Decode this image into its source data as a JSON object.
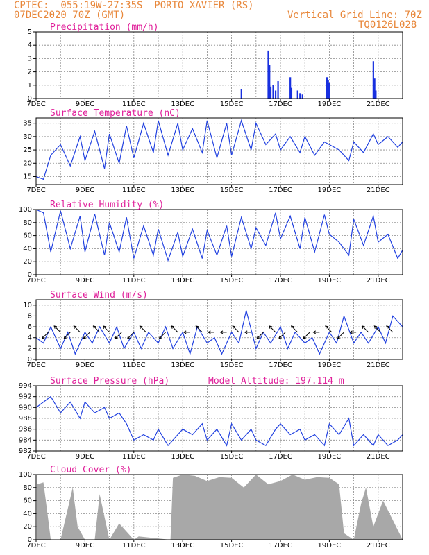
{
  "header": {
    "line1": "CPTEC:  055:19W-27:35S  PORTO XAVIER (RS)",
    "line2": "07DEC2020 70Z (GMT)",
    "right1": "Vertical Grid Line: 70Z",
    "right2": "TQ0126L028"
  },
  "colors": {
    "line": "#2040e0",
    "bar": "#1830e0",
    "cloud": "#a8a8a8",
    "title": "#e0209a",
    "header": "#e8873a"
  },
  "x_ticks": [
    "7DEC",
    "9DEC",
    "11DEC",
    "13DEC",
    "15DEC",
    "17DEC",
    "19DEC",
    "21DEC"
  ],
  "x_range_days": [
    7,
    22
  ],
  "panels": [
    {
      "id": "precip",
      "title": "Precipitation (mm/h)",
      "yticks": [
        0,
        1,
        2,
        3,
        4,
        5
      ],
      "ylim": [
        0,
        5
      ]
    },
    {
      "id": "temp",
      "title": "Surface Temperature (nC)",
      "yticks": [
        15,
        20,
        25,
        30,
        35
      ],
      "ylim": [
        12,
        37
      ]
    },
    {
      "id": "rh",
      "title": "Relative Humidity (%)",
      "yticks": [
        0,
        20,
        40,
        60,
        80,
        100
      ],
      "ylim": [
        0,
        100
      ]
    },
    {
      "id": "wind",
      "title": "Surface Wind (m/s)",
      "yticks": [
        0,
        2,
        4,
        6,
        8,
        10
      ],
      "ylim": [
        0,
        11
      ]
    },
    {
      "id": "pres",
      "title": "Surface Pressure (hPa)",
      "extra": "Model Altitude: 197.114 m",
      "yticks": [
        982,
        984,
        986,
        988,
        990,
        992,
        994
      ],
      "ylim": [
        982,
        994
      ]
    },
    {
      "id": "cloud",
      "title": "Cloud Cover (%)",
      "yticks": [
        0,
        20,
        40,
        60,
        80,
        100
      ],
      "ylim": [
        0,
        100
      ]
    }
  ],
  "chart_data": [
    {
      "type": "bar",
      "title": "Precipitation (mm/h)",
      "ylim": [
        0,
        5
      ],
      "x": [
        15.4,
        16.5,
        16.55,
        16.6,
        16.7,
        16.8,
        16.9,
        17.4,
        17.45,
        17.7,
        17.8,
        17.9,
        18.9,
        18.95,
        19.0,
        20.8,
        20.85,
        20.9
      ],
      "values": [
        0.7,
        3.6,
        2.5,
        0.9,
        1.0,
        0.6,
        1.3,
        1.6,
        0.8,
        0.6,
        0.4,
        0.3,
        1.6,
        1.4,
        1.2,
        2.8,
        1.5,
        0.6
      ]
    },
    {
      "type": "line",
      "title": "Surface Temperature (nC)",
      "ylim": [
        12,
        37
      ],
      "x": [
        7.0,
        7.3,
        7.6,
        8.0,
        8.4,
        8.8,
        9.0,
        9.4,
        9.8,
        10.0,
        10.4,
        10.7,
        11.0,
        11.4,
        11.8,
        12.0,
        12.4,
        12.8,
        13.0,
        13.4,
        13.8,
        14.0,
        14.4,
        14.8,
        15.0,
        15.4,
        15.8,
        16.0,
        16.4,
        16.8,
        17.0,
        17.4,
        17.8,
        18.0,
        18.4,
        18.8,
        19.0,
        19.4,
        19.8,
        20.0,
        20.4,
        20.8,
        21.0,
        21.4,
        21.8,
        22.0
      ],
      "values": [
        15,
        14,
        23,
        27,
        19,
        30,
        21,
        32,
        18,
        31,
        20,
        34,
        22,
        35,
        24,
        36,
        23,
        35,
        25,
        33,
        24,
        36,
        22,
        35,
        23,
        36,
        25,
        35,
        27,
        31,
        25,
        30,
        24,
        30,
        23,
        28,
        27,
        25,
        21,
        28,
        24,
        31,
        27,
        30,
        26,
        28
      ]
    },
    {
      "type": "line",
      "title": "Relative Humidity (%)",
      "ylim": [
        0,
        100
      ],
      "x": [
        7.0,
        7.3,
        7.6,
        8.0,
        8.4,
        8.8,
        9.0,
        9.4,
        9.8,
        10.0,
        10.4,
        10.7,
        11.0,
        11.4,
        11.8,
        12.0,
        12.4,
        12.8,
        13.0,
        13.4,
        13.8,
        14.0,
        14.4,
        14.8,
        15.0,
        15.4,
        15.8,
        16.0,
        16.4,
        16.8,
        17.0,
        17.4,
        17.8,
        18.0,
        18.4,
        18.8,
        19.0,
        19.4,
        19.8,
        20.0,
        20.4,
        20.8,
        21.0,
        21.4,
        21.8,
        22.0
      ],
      "values": [
        100,
        95,
        35,
        98,
        40,
        90,
        35,
        93,
        30,
        80,
        35,
        88,
        25,
        75,
        30,
        70,
        22,
        65,
        28,
        70,
        25,
        68,
        30,
        75,
        28,
        88,
        40,
        72,
        45,
        95,
        55,
        90,
        40,
        88,
        35,
        92,
        62,
        50,
        30,
        85,
        45,
        90,
        50,
        62,
        25,
        38
      ]
    },
    {
      "type": "line",
      "title": "Surface Wind (m/s)",
      "ylim": [
        0,
        11
      ],
      "x": [
        7.0,
        7.3,
        7.6,
        8.0,
        8.3,
        8.6,
        9.0,
        9.3,
        9.6,
        10.0,
        10.3,
        10.6,
        11.0,
        11.3,
        11.6,
        12.0,
        12.3,
        12.6,
        13.0,
        13.3,
        13.6,
        14.0,
        14.3,
        14.6,
        15.0,
        15.3,
        15.6,
        16.0,
        16.3,
        16.6,
        17.0,
        17.3,
        17.6,
        18.0,
        18.3,
        18.6,
        19.0,
        19.3,
        19.6,
        20.0,
        20.3,
        20.6,
        21.0,
        21.3,
        21.6,
        22.0
      ],
      "values": [
        4,
        3,
        6,
        2,
        5,
        1,
        5,
        3,
        6,
        3,
        6,
        2,
        5,
        2,
        5,
        3,
        6,
        2,
        5,
        1,
        6,
        3,
        4,
        1,
        5,
        3,
        9,
        2,
        5,
        3,
        6,
        2,
        5,
        3,
        4,
        1,
        5,
        3,
        8,
        3,
        5,
        3,
        6,
        3,
        8,
        6
      ],
      "vectors": [
        [
          7.5,
          -1,
          -1
        ],
        [
          8,
          -1,
          1
        ],
        [
          8.4,
          -1,
          -1
        ],
        [
          8.8,
          -1,
          1
        ],
        [
          9.2,
          -1,
          -1
        ],
        [
          9.6,
          -1,
          1
        ],
        [
          10,
          -1,
          1
        ],
        [
          10.5,
          -1,
          -1
        ],
        [
          11,
          -1,
          -1
        ],
        [
          11.5,
          -1,
          1
        ],
        [
          12.3,
          -1,
          -1
        ],
        [
          12.8,
          -1,
          1
        ],
        [
          13.3,
          -1,
          0
        ],
        [
          13.8,
          -1,
          1
        ],
        [
          14.3,
          -1,
          0
        ],
        [
          14.8,
          -1,
          0
        ],
        [
          15.3,
          -1,
          1
        ],
        [
          15.8,
          -1,
          0
        ],
        [
          16.3,
          -1,
          -1
        ],
        [
          16.8,
          -1,
          1
        ],
        [
          17.2,
          -1,
          -1
        ],
        [
          17.7,
          -1,
          1
        ],
        [
          18.2,
          -1,
          -1
        ],
        [
          18.6,
          -1,
          0
        ],
        [
          19.1,
          -1,
          1
        ],
        [
          19.6,
          -1,
          -1
        ],
        [
          20.1,
          -1,
          0
        ],
        [
          20.6,
          -1,
          1
        ],
        [
          21.1,
          -1,
          1
        ],
        [
          21.6,
          -1,
          1
        ]
      ]
    },
    {
      "type": "line",
      "title": "Surface Pressure (hPa)",
      "ylim": [
        982,
        994
      ],
      "x": [
        7.0,
        7.3,
        7.6,
        8.0,
        8.4,
        8.8,
        9.0,
        9.4,
        9.8,
        10.0,
        10.4,
        10.7,
        11.0,
        11.4,
        11.8,
        12.0,
        12.4,
        12.8,
        13.0,
        13.4,
        13.8,
        14.0,
        14.4,
        14.8,
        15.0,
        15.4,
        15.8,
        16.0,
        16.4,
        16.8,
        17.0,
        17.4,
        17.8,
        18.0,
        18.4,
        18.8,
        19.0,
        19.4,
        19.8,
        20.0,
        20.4,
        20.8,
        21.0,
        21.4,
        21.8,
        22.0
      ],
      "values": [
        990,
        991,
        992,
        989,
        991,
        988,
        991,
        989,
        990,
        988,
        989,
        987,
        984,
        985,
        984,
        986,
        983,
        985,
        986,
        985,
        987,
        984,
        986,
        983,
        987,
        984,
        986,
        984,
        983,
        986,
        987,
        985,
        986,
        984,
        985,
        983,
        987,
        985,
        988,
        983,
        985,
        983,
        985,
        983,
        984,
        985
      ]
    },
    {
      "type": "area",
      "title": "Cloud Cover (%)",
      "ylim": [
        0,
        100
      ],
      "x": [
        7.05,
        7.3,
        7.5,
        7.6,
        8.0,
        8.5,
        8.7,
        9.0,
        9.4,
        9.6,
        10.0,
        10.4,
        11.0,
        11.2,
        12.5,
        12.6,
        13.0,
        13.5,
        14.0,
        14.5,
        15.0,
        15.5,
        16.0,
        16.5,
        17.0,
        17.5,
        18.0,
        18.5,
        19.0,
        19.4,
        19.6,
        20.0,
        20.3,
        20.5,
        20.8,
        21.2,
        21.6,
        22.0
      ],
      "values": [
        85,
        88,
        30,
        0,
        0,
        80,
        20,
        0,
        0,
        70,
        0,
        25,
        0,
        5,
        0,
        95,
        100,
        98,
        90,
        96,
        95,
        80,
        100,
        85,
        90,
        100,
        92,
        96,
        95,
        85,
        10,
        0,
        55,
        80,
        20,
        60,
        30,
        0
      ]
    }
  ]
}
